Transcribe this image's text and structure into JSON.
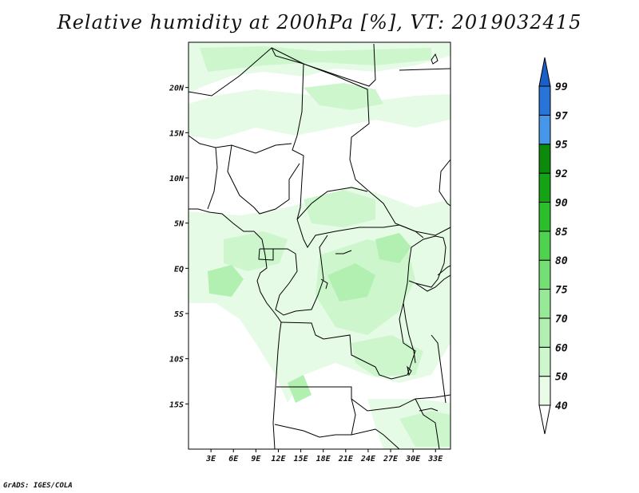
{
  "title": "Relative humidity at 200hPa [%], VT: 2019032415",
  "credit": "GrADS: IGES/COLA",
  "map": {
    "lat_range": [
      -20,
      25
    ],
    "lon_range": [
      0,
      35
    ],
    "lat_labels": [
      {
        "lat": 20,
        "label": "20N"
      },
      {
        "lat": 15,
        "label": "15N"
      },
      {
        "lat": 10,
        "label": "10N"
      },
      {
        "lat": 5,
        "label": "5N"
      },
      {
        "lat": 0,
        "label": "EQ"
      },
      {
        "lat": -5,
        "label": "5S"
      },
      {
        "lat": -10,
        "label": "10S"
      },
      {
        "lat": -15,
        "label": "15S"
      }
    ],
    "lon_labels": [
      {
        "lon": 3,
        "label": "3E"
      },
      {
        "lon": 6,
        "label": "6E"
      },
      {
        "lon": 9,
        "label": "9E"
      },
      {
        "lon": 12,
        "label": "12E"
      },
      {
        "lon": 15,
        "label": "15E"
      },
      {
        "lon": 18,
        "label": "18E"
      },
      {
        "lon": 21,
        "label": "21E"
      },
      {
        "lon": 24,
        "label": "24E"
      },
      {
        "lon": 27,
        "label": "27E"
      },
      {
        "lon": 30,
        "label": "30E"
      },
      {
        "lon": 33,
        "label": "33E"
      }
    ]
  },
  "colorbar": {
    "levels": [
      "40",
      "50",
      "60",
      "70",
      "75",
      "80",
      "85",
      "90",
      "92",
      "95",
      "97",
      "99"
    ],
    "colors": [
      "#ffffff",
      "#e8fce8",
      "#cdf6cd",
      "#b2f0b2",
      "#96e996",
      "#74df74",
      "#4fd24f",
      "#2bbf2b",
      "#14a314",
      "#0b8a0b",
      "#4696ea",
      "#2874d8",
      "#1a5ec8"
    ]
  }
}
